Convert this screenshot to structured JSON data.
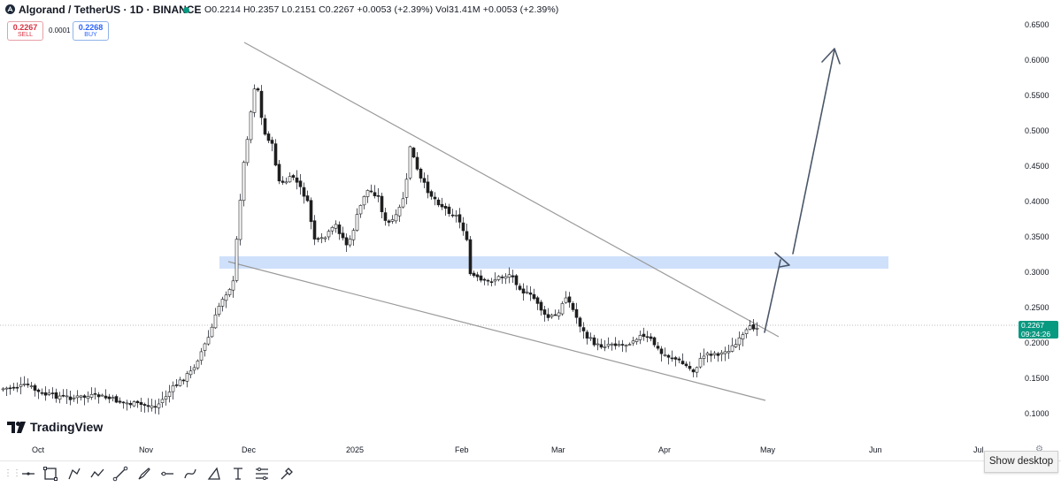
{
  "header": {
    "symbol_title": "Algorand / TetherUS · 1D · BINANCE",
    "ohlc_text": "O0.2214 H0.2357 L0.2151 C0.2267 +0.0053 (+2.39%) Vol31.41M +0.0053 (+2.39%)",
    "status_color": "#089981"
  },
  "trade": {
    "sell_price": "0.2267",
    "sell_label": "SELL",
    "spread": "0.0001",
    "buy_price": "0.2268",
    "buy_label": "BUY"
  },
  "price_axis": {
    "labels": [
      "0.6500",
      "0.6000",
      "0.5500",
      "0.5000",
      "0.4500",
      "0.4000",
      "0.3500",
      "0.3000",
      "0.2500",
      "0.2000",
      "0.1500",
      "0.1000"
    ],
    "current_price": "0.2267",
    "countdown": "09:24:26",
    "current_color": "#089981"
  },
  "time_axis": {
    "labels": [
      "Oct",
      "Nov",
      "Dec",
      "2025",
      "Feb",
      "Mar",
      "Apr",
      "May",
      "Jun",
      "Jul"
    ]
  },
  "branding": {
    "logo_text": "TradingView"
  },
  "toolbar": {
    "tools": [
      "cursor-tool-icon",
      "rectangle-tool-icon",
      "path-tool-icon",
      "polyline-tool-icon",
      "trend-line-tool-icon",
      "brush-tool-icon",
      "horizontal-ray-tool-icon",
      "curve-tool-icon",
      "triangle-tool-icon",
      "text-tool-icon",
      "fib-tool-icon",
      "eyedropper-tool-icon"
    ]
  },
  "taskbar": {
    "show_desktop_label": "Show desktop"
  },
  "chart_annotations": {
    "pattern": "falling wedge",
    "zone_color": "#cfe0fb",
    "line_color": "#9a9a9a"
  }
}
